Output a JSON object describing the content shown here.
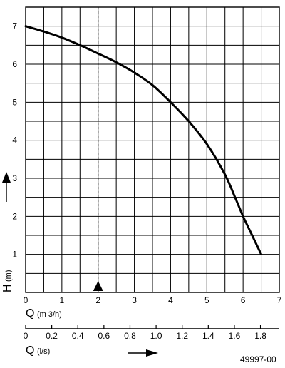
{
  "chart_data": {
    "type": "line",
    "xlabel_main": "Q",
    "xlabel_unit": "(m 3/h)",
    "ylabel_main": "H",
    "ylabel_unit": "(m)",
    "secondary_xlabel_main": "Q",
    "secondary_xlabel_unit": "(l/s)",
    "xlim": [
      0,
      7
    ],
    "ylim": [
      0,
      7.5
    ],
    "xticks": [
      "0",
      "1",
      "2",
      "3",
      "4",
      "5",
      "6",
      "7"
    ],
    "yticks": [
      "1",
      "2",
      "3",
      "4",
      "5",
      "6",
      "7"
    ],
    "secondary_xticks": [
      "0",
      "0.2",
      "0.4",
      "0.6",
      "0.8",
      "1.0",
      "1.2",
      "1.4",
      "1.6",
      "1.8"
    ],
    "secondary_xticks_values": [
      0,
      0.2,
      0.4,
      0.6,
      0.8,
      1.0,
      1.2,
      1.4,
      1.6,
      1.8
    ],
    "grid": true,
    "series": [
      {
        "x": [
          0,
          0.5,
          1,
          1.5,
          2,
          2.5,
          3,
          3.5,
          4,
          4.5,
          5,
          5.5,
          5.8,
          6.0,
          6.2,
          6.5
        ],
        "y": [
          7.0,
          6.86,
          6.7,
          6.5,
          6.28,
          6.05,
          5.78,
          5.45,
          5.0,
          4.5,
          3.9,
          3.1,
          2.45,
          2.0,
          1.6,
          1.0
        ]
      }
    ],
    "marker_line_x": 2.0,
    "footer_code": "49997-00"
  }
}
